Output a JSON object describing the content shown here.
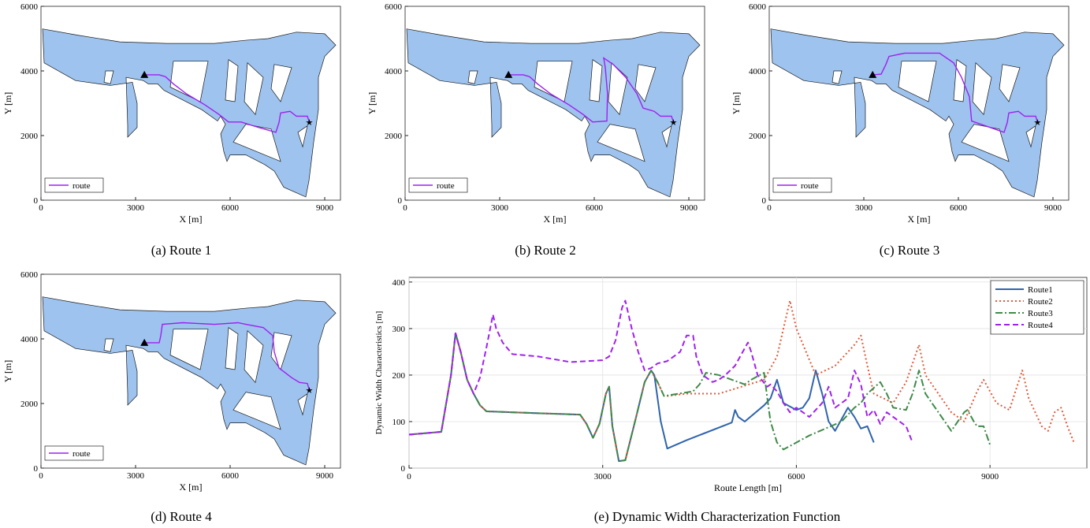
{
  "panels": [
    {
      "caption": "(a) Route 1",
      "legend": "route",
      "route_color": "#a020f0",
      "route": [
        [
          3280,
          3880
        ],
        [
          3750,
          3880
        ],
        [
          3950,
          3820
        ],
        [
          4200,
          3600
        ],
        [
          4600,
          3300
        ],
        [
          5200,
          2950
        ],
        [
          5650,
          2650
        ],
        [
          5950,
          2420
        ],
        [
          6350,
          2420
        ],
        [
          6900,
          2250
        ],
        [
          7450,
          2100
        ],
        [
          7550,
          2400
        ],
        [
          7600,
          2700
        ],
        [
          7900,
          2750
        ],
        [
          8100,
          2600
        ],
        [
          8450,
          2600
        ],
        [
          8510,
          2420
        ]
      ]
    },
    {
      "caption": "(b) Route 2",
      "legend": "route",
      "route_color": "#a020f0",
      "route": [
        [
          3280,
          3880
        ],
        [
          3750,
          3880
        ],
        [
          3950,
          3820
        ],
        [
          4200,
          3600
        ],
        [
          4600,
          3300
        ],
        [
          5200,
          2950
        ],
        [
          5650,
          2650
        ],
        [
          5950,
          2420
        ],
        [
          6400,
          2450
        ],
        [
          6420,
          3300
        ],
        [
          6350,
          4100
        ],
        [
          6300,
          4400
        ],
        [
          6600,
          4200
        ],
        [
          7000,
          3800
        ],
        [
          7350,
          3300
        ],
        [
          7550,
          2850
        ],
        [
          7900,
          2750
        ],
        [
          8100,
          2600
        ],
        [
          8450,
          2600
        ],
        [
          8510,
          2420
        ]
      ]
    },
    {
      "caption": "(c) Route 3",
      "legend": "route",
      "route_color": "#a020f0",
      "route": [
        [
          3280,
          3880
        ],
        [
          3550,
          3900
        ],
        [
          3700,
          4200
        ],
        [
          3800,
          4450
        ],
        [
          4300,
          4550
        ],
        [
          5400,
          4550
        ],
        [
          5850,
          4250
        ],
        [
          6100,
          3800
        ],
        [
          6350,
          3200
        ],
        [
          6420,
          2450
        ],
        [
          7450,
          2100
        ],
        [
          7550,
          2400
        ],
        [
          7600,
          2700
        ],
        [
          7900,
          2750
        ],
        [
          8100,
          2600
        ],
        [
          8450,
          2600
        ],
        [
          8510,
          2420
        ]
      ]
    },
    {
      "caption": "(d) Route 4",
      "legend": "route",
      "route_color": "#a020f0",
      "route": [
        [
          3280,
          3880
        ],
        [
          3750,
          3880
        ],
        [
          3800,
          4100
        ],
        [
          3850,
          4450
        ],
        [
          4500,
          4500
        ],
        [
          5500,
          4450
        ],
        [
          6250,
          4500
        ],
        [
          6500,
          4450
        ],
        [
          7050,
          4350
        ],
        [
          7350,
          4100
        ],
        [
          7400,
          3600
        ],
        [
          7550,
          3100
        ],
        [
          7950,
          2800
        ],
        [
          8200,
          2650
        ],
        [
          8450,
          2620
        ],
        [
          8510,
          2420
        ]
      ]
    }
  ],
  "map_axes": {
    "xlabel": "X [m]",
    "ylabel": "Y [m]",
    "xticks": [
      "0",
      "3000",
      "6000",
      "9000"
    ],
    "yticks": [
      "0",
      "2000",
      "4000",
      "6000"
    ],
    "xlim": [
      0,
      9500
    ],
    "ylim": [
      0,
      6000
    ],
    "water_color": "#9dc3ee",
    "start_marker": {
      "x": 3280,
      "y": 3880
    },
    "goal_marker": {
      "x": 8510,
      "y": 2420
    }
  },
  "chart_caption": "(e) Dynamic Width Characterization Function",
  "chart_data": {
    "type": "line",
    "title": "",
    "xlabel": "Route Length [m]",
    "ylabel": "Dynamic Width Characteristics [m]",
    "xlim": [
      0,
      10500
    ],
    "ylim": [
      0,
      410
    ],
    "xticks": [
      "0",
      "3000",
      "6000",
      "9000"
    ],
    "yticks": [
      "0",
      "100",
      "200",
      "300",
      "400"
    ],
    "grid": true,
    "legend_position": "top-right",
    "series": [
      {
        "name": "Route1",
        "color": "#2f64ac",
        "dash": "none",
        "x": [
          0,
          500,
          650,
          720,
          800,
          900,
          1000,
          1100,
          1200,
          2000,
          2650,
          2750,
          2850,
          2950,
          3050,
          3100,
          3150,
          3250,
          3350,
          3500,
          3650,
          3750,
          3800,
          3900,
          4000,
          4300,
          5000,
          5050,
          5100,
          5200,
          5500,
          5600,
          5700,
          5800,
          6000,
          6100,
          6200,
          6300,
          6400,
          6500,
          6600,
          6700,
          6800,
          6900,
          7000,
          7100,
          7200
        ],
        "y": [
          72,
          78,
          200,
          290,
          250,
          190,
          160,
          135,
          122,
          118,
          115,
          95,
          65,
          95,
          160,
          175,
          90,
          15,
          17,
          100,
          185,
          210,
          200,
          100,
          42,
          60,
          98,
          125,
          110,
          100,
          135,
          150,
          190,
          140,
          125,
          130,
          150,
          210,
          160,
          100,
          80,
          105,
          130,
          110,
          85,
          90,
          55
        ]
      },
      {
        "name": "Route2",
        "color": "#e15a3a",
        "dash": "2,3",
        "x": [
          0,
          500,
          650,
          720,
          800,
          900,
          1000,
          1100,
          1200,
          2000,
          2650,
          2750,
          2850,
          2950,
          3050,
          3100,
          3150,
          3250,
          3350,
          3500,
          3650,
          3750,
          3850,
          3950,
          4000,
          4300,
          4800,
          5500,
          5700,
          5800,
          5900,
          6000,
          6300,
          6600,
          6900,
          7000,
          7100,
          7200,
          7500,
          7700,
          7800,
          7900,
          8000,
          8200,
          8400,
          8600,
          8800,
          8900,
          9100,
          9300,
          9500,
          9600,
          9800,
          9900,
          10000,
          10100,
          10200,
          10300
        ],
        "y": [
          72,
          78,
          200,
          290,
          250,
          190,
          160,
          135,
          122,
          118,
          115,
          95,
          65,
          95,
          160,
          175,
          90,
          15,
          17,
          100,
          185,
          210,
          185,
          155,
          155,
          160,
          160,
          190,
          240,
          300,
          360,
          300,
          200,
          220,
          265,
          285,
          220,
          160,
          140,
          185,
          225,
          265,
          200,
          160,
          120,
          100,
          165,
          190,
          140,
          125,
          210,
          150,
          90,
          80,
          120,
          130,
          90,
          55
        ]
      },
      {
        "name": "Route3",
        "color": "#3f8a48",
        "dash": "9,3,2,3",
        "x": [
          0,
          500,
          650,
          720,
          800,
          900,
          1000,
          1100,
          1200,
          2000,
          2650,
          2750,
          2850,
          2950,
          3050,
          3100,
          3150,
          3250,
          3350,
          3500,
          3650,
          3750,
          3850,
          3950,
          4400,
          4500,
          4600,
          4800,
          5200,
          5300,
          5500,
          5550,
          5600,
          5700,
          5800,
          6200,
          6700,
          6900,
          7000,
          7100,
          7300,
          7400,
          7500,
          7700,
          7800,
          7900,
          8000,
          8200,
          8400,
          8600,
          8650,
          8750,
          8800,
          8850,
          8900,
          9000
        ],
        "y": [
          72,
          78,
          200,
          290,
          250,
          190,
          160,
          135,
          122,
          118,
          115,
          95,
          65,
          95,
          160,
          175,
          90,
          15,
          17,
          100,
          185,
          210,
          185,
          155,
          165,
          180,
          205,
          200,
          180,
          190,
          205,
          150,
          100,
          55,
          40,
          70,
          100,
          130,
          140,
          160,
          185,
          160,
          130,
          125,
          160,
          210,
          160,
          120,
          80,
          120,
          125,
          100,
          90,
          90,
          90,
          50
        ]
      },
      {
        "name": "Route4",
        "color": "#a020f0",
        "dash": "7,4",
        "x": [
          0,
          500,
          650,
          720,
          800,
          900,
          1000,
          1100,
          1200,
          1300,
          1350,
          1450,
          1600,
          2000,
          2500,
          3000,
          3100,
          3200,
          3300,
          3350,
          3450,
          3550,
          3650,
          3750,
          3850,
          4000,
          4200,
          4300,
          4400,
          4450,
          4550,
          4650,
          4700,
          4800,
          4900,
          5050,
          5250,
          5300,
          5400,
          5550,
          5600,
          5700,
          5800,
          5900,
          6000,
          6200,
          6400,
          6500,
          6600,
          6800,
          6900,
          7000,
          7100,
          7200,
          7300,
          7400,
          7500,
          7700,
          7800
        ],
        "y": [
          72,
          78,
          200,
          290,
          250,
          190,
          160,
          195,
          260,
          330,
          300,
          270,
          245,
          240,
          228,
          232,
          240,
          275,
          345,
          360,
          300,
          250,
          210,
          215,
          225,
          230,
          250,
          285,
          285,
          240,
          200,
          190,
          185,
          190,
          200,
          220,
          270,
          250,
          200,
          175,
          180,
          165,
          140,
          120,
          130,
          110,
          140,
          175,
          130,
          150,
          210,
          180,
          110,
          125,
          95,
          120,
          110,
          90,
          55
        ]
      }
    ]
  }
}
